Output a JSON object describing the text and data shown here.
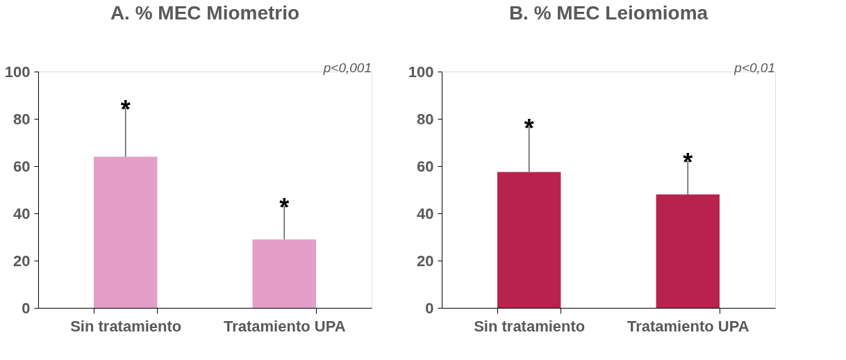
{
  "chart_data": [
    {
      "type": "bar",
      "title": "A. % MEC Miometrio",
      "categories": [
        "Sin tratamiento",
        "Tratamiento UPA"
      ],
      "values": [
        64,
        29
      ],
      "colors": [
        "#e39fc8",
        "#e39fc8"
      ],
      "errors": [
        [
          64,
          84.5
        ],
        [
          29,
          43
        ]
      ],
      "ylim": [
        0,
        100
      ],
      "yticks": [
        0,
        20,
        40,
        60,
        80,
        100
      ],
      "grid": false,
      "annotations": [
        {
          "text": "*",
          "x": "Sin tratamiento",
          "y": 84.5
        },
        {
          "text": "*",
          "x": "Tratamiento UPA",
          "y": 43
        },
        "p<0,001"
      ]
    },
    {
      "type": "bar",
      "title": "B. % MEC Leiomioma",
      "categories": [
        "Sin tratamiento",
        "Tratamiento UPA"
      ],
      "values": [
        57.5,
        48
      ],
      "colors": [
        "#b8234e",
        "#b8234e"
      ],
      "errors": [
        [
          57.5,
          76.5
        ],
        [
          48,
          62
        ]
      ],
      "ylim": [
        0,
        100
      ],
      "yticks": [
        0,
        20,
        40,
        60,
        80,
        100
      ],
      "grid": false,
      "annotations": [
        {
          "text": "*",
          "x": "Sin tratamiento",
          "y": 76.5
        },
        {
          "text": "*",
          "x": "Tratamiento UPA",
          "y": 62
        },
        "p<0,01"
      ]
    }
  ]
}
